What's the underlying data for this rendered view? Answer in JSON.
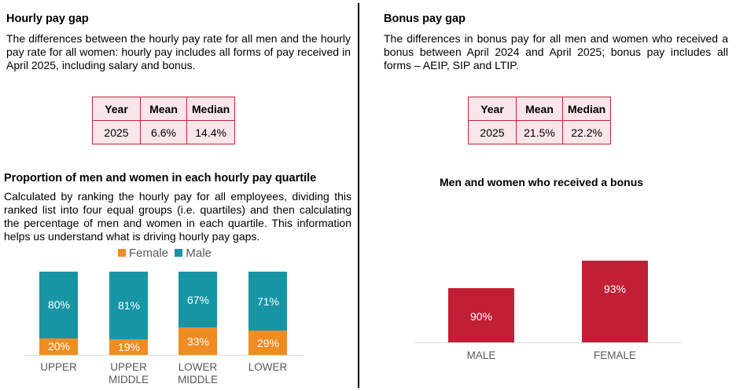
{
  "left": {
    "title": "Hourly pay gap",
    "description": "The differences between the hourly pay rate for all men and the hourly pay rate for all women: hourly pay includes all forms of pay received in April 2025, including salary and bonus.",
    "table": {
      "headers": [
        "Year",
        "Mean",
        "Median"
      ],
      "row": [
        "2025",
        "6.6%",
        "14.4%"
      ]
    },
    "quartile_title": "Proportion of men and women in each hourly pay quartile",
    "quartile_description": "Calculated by ranking the hourly pay for all employees, dividing this ranked list into four equal groups (i.e. quartiles) and then calculating the percentage of men and women in each quartile. This information helps us understand what is driving hourly pay gaps."
  },
  "right": {
    "title": "Bonus pay gap",
    "description": "The differences in bonus pay for all men and women who received a bonus between April 2024 and April 2025; bonus pay includes all forms – AEIP,  SIP and LTIP.",
    "table": {
      "headers": [
        "Year",
        "Mean",
        "Median"
      ],
      "row": [
        "2025",
        "21.5%",
        "22.2%"
      ]
    }
  },
  "chart_data": [
    {
      "type": "bar",
      "stacked": true,
      "categories": [
        "UPPER",
        "UPPER MIDDLE",
        "LOWER MIDDLE",
        "LOWER"
      ],
      "series": [
        {
          "name": "Female",
          "values": [
            20,
            19,
            33,
            29
          ],
          "color": "#f08c24"
        },
        {
          "name": "Male",
          "values": [
            80,
            81,
            67,
            71
          ],
          "color": "#1795a5"
        }
      ],
      "ylim": [
        0,
        100
      ],
      "legend": "top",
      "grid": false,
      "value_suffix": "%"
    },
    {
      "type": "bar",
      "title": "Men and women who received a bonus",
      "categories": [
        "MALE",
        "FEMALE"
      ],
      "values": [
        90,
        93
      ],
      "color": "#c11f35",
      "ylim": [
        84,
        95
      ],
      "grid": false,
      "value_suffix": "%"
    }
  ]
}
